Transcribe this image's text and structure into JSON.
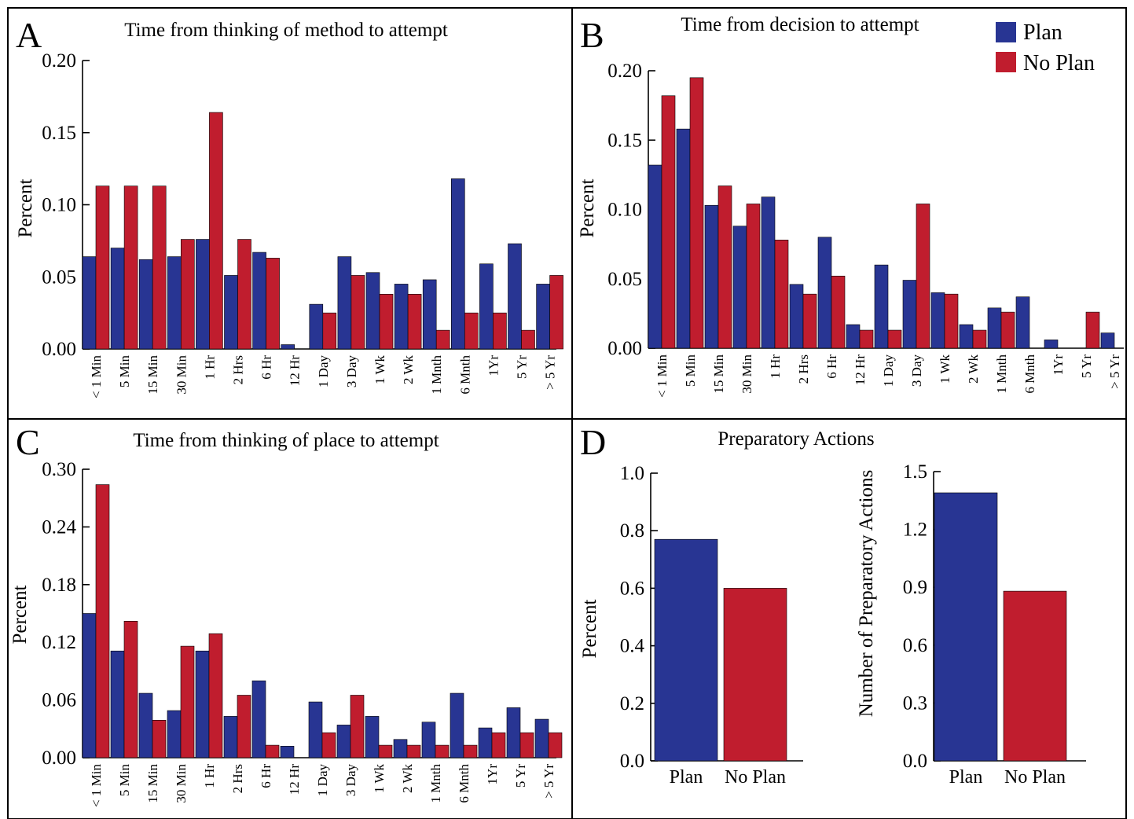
{
  "legend": {
    "position": "top-right",
    "items": [
      {
        "label": "Plan",
        "color": "#283593"
      },
      {
        "label": "No Plan",
        "color": "#c01d2e"
      }
    ]
  },
  "colors": {
    "plan": "#283593",
    "no_plan": "#c01d2e"
  },
  "panel_letters": {
    "A": "A",
    "B": "B",
    "C": "C",
    "D": "D"
  },
  "panel_d_title": "Preparatory Actions",
  "chart_data": [
    {
      "id": "A",
      "type": "bar",
      "title": "Time from thinking of method to attempt",
      "ylabel": "Percent",
      "xlabel": "",
      "ylim": [
        0,
        0.2
      ],
      "yticks": [
        "0.00",
        "0.05",
        "0.10",
        "0.15",
        "0.20"
      ],
      "categories": [
        "< 1 Min",
        "5 Min",
        "15 Min",
        "30 Min",
        "1 Hr",
        "2 Hrs",
        "6 Hr",
        "12 Hr",
        "1 Day",
        "3 Day",
        "1 Wk",
        "2 Wk",
        "1 Mnth",
        "6 Mnth",
        "1Yr",
        "5 Yr",
        "> 5 Yr"
      ],
      "series": [
        {
          "name": "Plan",
          "values": [
            0.064,
            0.07,
            0.062,
            0.064,
            0.076,
            0.051,
            0.067,
            0.003,
            0.031,
            0.064,
            0.053,
            0.045,
            0.048,
            0.118,
            0.059,
            0.073,
            0.045
          ]
        },
        {
          "name": "No Plan",
          "values": [
            0.113,
            0.113,
            0.113,
            0.076,
            0.164,
            0.076,
            0.063,
            0.0,
            0.025,
            0.051,
            0.038,
            0.038,
            0.013,
            0.025,
            0.025,
            0.013,
            0.051
          ]
        }
      ]
    },
    {
      "id": "B",
      "type": "bar",
      "title": "Time from decision to attempt",
      "ylabel": "Percent",
      "xlabel": "",
      "ylim": [
        0,
        0.2
      ],
      "yticks": [
        "0.00",
        "0.05",
        "0.10",
        "0.15",
        "0.20"
      ],
      "categories": [
        "< 1 Min",
        "5 Min",
        "15 Min",
        "30 Min",
        "1 Hr",
        "2 Hrs",
        "6 Hr",
        "12 Hr",
        "1 Day",
        "3 Day",
        "1 Wk",
        "2 Wk",
        "1 Mnth",
        "6 Mnth",
        "1Yr",
        "5 Yr",
        "> 5 Yr"
      ],
      "series": [
        {
          "name": "Plan",
          "values": [
            0.132,
            0.158,
            0.103,
            0.088,
            0.109,
            0.046,
            0.08,
            0.017,
            0.06,
            0.049,
            0.04,
            0.017,
            0.029,
            0.037,
            0.006,
            0.0,
            0.011
          ]
        },
        {
          "name": "No Plan",
          "values": [
            0.182,
            0.195,
            0.117,
            0.104,
            0.078,
            0.039,
            0.052,
            0.013,
            0.013,
            0.104,
            0.039,
            0.013,
            0.026,
            0.0,
            0.0,
            0.026,
            0.0
          ]
        }
      ]
    },
    {
      "id": "C",
      "type": "bar",
      "title": "Time from thinking of place to attempt",
      "ylabel": "Percent",
      "xlabel": "",
      "ylim": [
        0,
        0.3
      ],
      "yticks": [
        "0.00",
        "0.06",
        "0.12",
        "0.18",
        "0.24",
        "0.30"
      ],
      "categories": [
        "< 1 Min",
        "5 Min",
        "15 Min",
        "30 Min",
        "1 Hr",
        "2 Hrs",
        "6 Hr",
        "12 Hr",
        "1 Day",
        "3 Day",
        "1 Wk",
        "2 Wk",
        "1 Mnth",
        "6 Mnth",
        "1Yr",
        "5 Yr",
        "> 5 Yr"
      ],
      "series": [
        {
          "name": "Plan",
          "values": [
            0.15,
            0.111,
            0.067,
            0.049,
            0.111,
            0.043,
            0.08,
            0.012,
            0.058,
            0.034,
            0.043,
            0.019,
            0.037,
            0.067,
            0.031,
            0.052,
            0.04
          ]
        },
        {
          "name": "No Plan",
          "values": [
            0.284,
            0.142,
            0.039,
            0.116,
            0.129,
            0.065,
            0.013,
            0.0,
            0.026,
            0.065,
            0.013,
            0.013,
            0.013,
            0.013,
            0.026,
            0.026,
            0.026
          ]
        }
      ]
    },
    {
      "id": "D1",
      "type": "bar",
      "title": "",
      "ylabel": "Percent",
      "xlabel": "",
      "ylim": [
        0,
        1.0
      ],
      "yticks": [
        "0.0",
        "0.2",
        "0.4",
        "0.6",
        "0.8",
        "1.0"
      ],
      "categories": [
        "Plan",
        "No Plan"
      ],
      "values": [
        0.77,
        0.6
      ]
    },
    {
      "id": "D2",
      "type": "bar",
      "title": "",
      "ylabel": "Number of Preparatory Actions",
      "xlabel": "",
      "ylim": [
        0,
        1.5
      ],
      "yticks": [
        "0.0",
        "0.3",
        "0.6",
        "0.9",
        "1.2",
        "1.5"
      ],
      "categories": [
        "Plan",
        "No Plan"
      ],
      "values": [
        1.39,
        0.88
      ]
    }
  ]
}
